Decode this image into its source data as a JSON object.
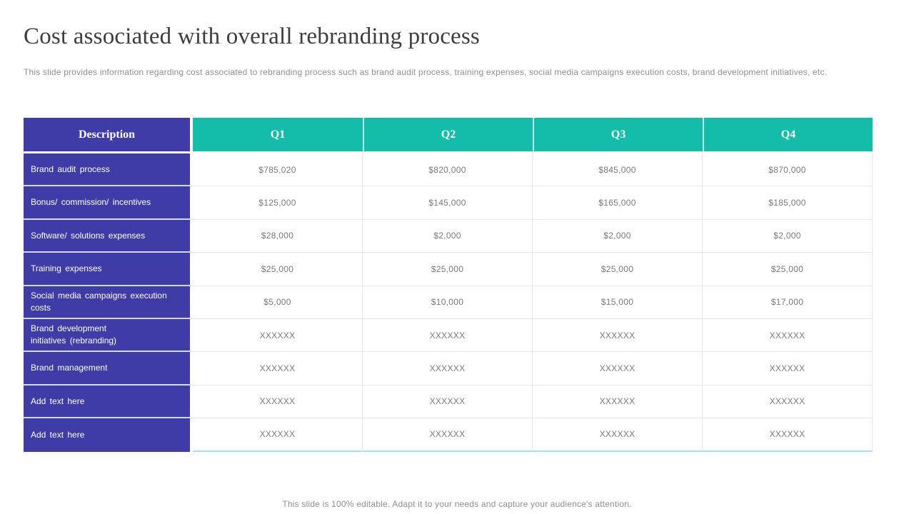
{
  "slide": {
    "title": "Cost associated with overall rebranding process",
    "subtitle": "This slide provides information regarding cost associated to rebranding process such as brand audit process,  training expenses, social media campaigns execution costs, brand development initiatives, etc.",
    "footer": "This slide is 100% editable. Adapt it to your needs and capture your audience's attention."
  },
  "colors": {
    "description_column_bg": "#3f3ca8",
    "quarter_header_bg": "#13bda9",
    "value_text": "#7a7a7a",
    "table_bottom_accent": "#a9def0"
  },
  "table": {
    "columns": [
      "Description",
      "Q1",
      "Q2",
      "Q3",
      "Q4"
    ],
    "rows": [
      {
        "label": "Brand audit process",
        "values": [
          "$785,020",
          "$820,000",
          "$845,000",
          "$870,000"
        ]
      },
      {
        "label": "Bonus/ commission/ incentives",
        "values": [
          "$125,000",
          "$145,000",
          "$165,000",
          "$185,000"
        ]
      },
      {
        "label": "Software/ solutions expenses",
        "values": [
          "$28,000",
          "$2,000",
          "$2,000",
          "$2,000"
        ]
      },
      {
        "label": "Training expenses",
        "values": [
          "$25,000",
          "$25,000",
          "$25,000",
          "$25,000"
        ]
      },
      {
        "label": "Social media campaigns execution\ncosts",
        "values": [
          "$5,000",
          "$10,000",
          "$15,000",
          "$17,000"
        ]
      },
      {
        "label": "Brand development\ninitiatives (rebranding)",
        "values": [
          "XXXXXX",
          "XXXXXX",
          "XXXXXX",
          "XXXXXX"
        ]
      },
      {
        "label": "Brand management",
        "values": [
          "XXXXXX",
          "XXXXXX",
          "XXXXXX",
          "XXXXXX"
        ]
      },
      {
        "label": "Add text here",
        "values": [
          "XXXXXX",
          "XXXXXX",
          "XXXXXX",
          "XXXXXX"
        ]
      },
      {
        "label": "Add text here",
        "values": [
          "XXXXXX",
          "XXXXXX",
          "XXXXXX",
          "XXXXXX"
        ]
      }
    ]
  }
}
